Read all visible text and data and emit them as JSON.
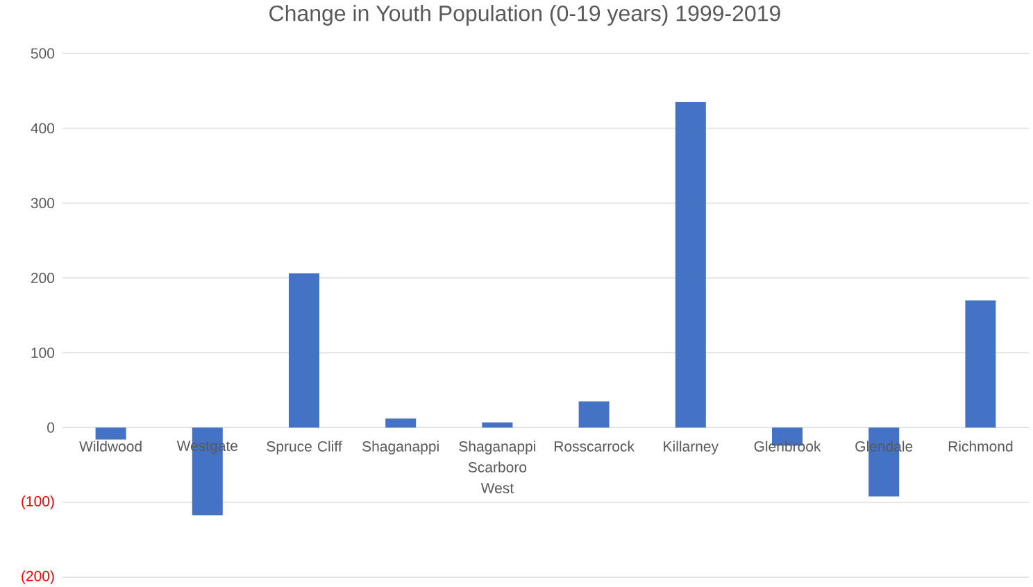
{
  "chart_data": {
    "type": "bar",
    "title": "Change in Youth Population (0-19 years) 1999-2019",
    "categories": [
      "Wildwood",
      "Westgate",
      "Spruce Cliff",
      "Shaganappi",
      "Shaganappi Scarboro West",
      "Rosscarrock",
      "Killarney",
      "Glenbrook",
      "Glendale",
      "Richmond"
    ],
    "values": [
      -16,
      -117,
      206,
      12,
      7,
      35,
      435,
      -24,
      -92,
      170
    ],
    "color": "#4472c4",
    "ylim": [
      -200,
      500
    ],
    "yticks": [
      {
        "value": -200,
        "label": "(200)"
      },
      {
        "value": -100,
        "label": "(100)"
      },
      0,
      100,
      200,
      300,
      400,
      500
    ],
    "grid": "y"
  }
}
